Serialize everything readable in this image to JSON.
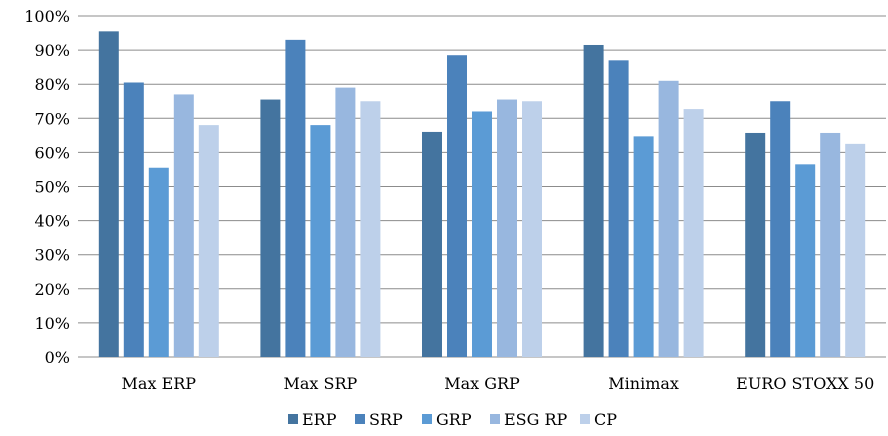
{
  "chart_data": {
    "type": "bar",
    "title": "",
    "xlabel": "",
    "ylabel": "",
    "categories": [
      "Max ERP",
      "Max SRP",
      "Max GRP",
      "Minimax",
      "EURO STOXX 50"
    ],
    "series": [
      {
        "name": "ERP",
        "color": "#44749f",
        "values": [
          95.5,
          75.5,
          66,
          91.5,
          65.7
        ]
      },
      {
        "name": "SRP",
        "color": "#4b82bb",
        "values": [
          80.5,
          93,
          88.5,
          87,
          75
        ]
      },
      {
        "name": "GRP",
        "color": "#5b9bd5",
        "values": [
          55.5,
          68,
          72,
          64.7,
          56.5
        ]
      },
      {
        "name": "ESG RP",
        "color": "#98b7df",
        "values": [
          77,
          79,
          75.5,
          81,
          65.7
        ]
      },
      {
        "name": "CP",
        "color": "#bdd0ea",
        "values": [
          68,
          75,
          75,
          72.7,
          62.5
        ]
      }
    ],
    "ylim": [
      0,
      100
    ],
    "yticks": [
      "0%",
      "10%",
      "20%",
      "30%",
      "40%",
      "50%",
      "60%",
      "70%",
      "80%",
      "90%",
      "100%"
    ],
    "grid": true,
    "legend": "bottom"
  }
}
